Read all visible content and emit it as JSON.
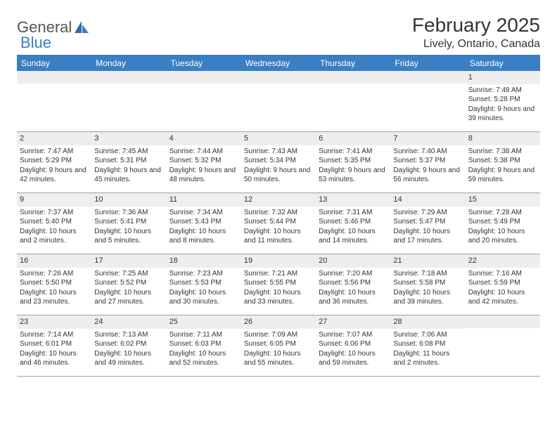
{
  "brand": {
    "part1": "General",
    "part2": "Blue"
  },
  "title": "February 2025",
  "location": "Lively, Ontario, Canada",
  "colors": {
    "header_bg": "#3a7fc4",
    "header_text": "#ffffff",
    "daynum_bg": "#eeeeee",
    "border": "#8aa6c0",
    "page_bg": "#ffffff",
    "text": "#333333"
  },
  "fonts": {
    "title_size": 28,
    "location_size": 16,
    "header_size": 12,
    "cell_size": 10,
    "daynum_size": 11
  },
  "day_labels": [
    "Sunday",
    "Monday",
    "Tuesday",
    "Wednesday",
    "Thursday",
    "Friday",
    "Saturday"
  ],
  "weeks": [
    [
      null,
      null,
      null,
      null,
      null,
      null,
      {
        "d": "1",
        "sunrise": "Sunrise: 7:48 AM",
        "sunset": "Sunset: 5:28 PM",
        "daylight": "Daylight: 9 hours and 39 minutes."
      }
    ],
    [
      {
        "d": "2",
        "sunrise": "Sunrise: 7:47 AM",
        "sunset": "Sunset: 5:29 PM",
        "daylight": "Daylight: 9 hours and 42 minutes."
      },
      {
        "d": "3",
        "sunrise": "Sunrise: 7:45 AM",
        "sunset": "Sunset: 5:31 PM",
        "daylight": "Daylight: 9 hours and 45 minutes."
      },
      {
        "d": "4",
        "sunrise": "Sunrise: 7:44 AM",
        "sunset": "Sunset: 5:32 PM",
        "daylight": "Daylight: 9 hours and 48 minutes."
      },
      {
        "d": "5",
        "sunrise": "Sunrise: 7:43 AM",
        "sunset": "Sunset: 5:34 PM",
        "daylight": "Daylight: 9 hours and 50 minutes."
      },
      {
        "d": "6",
        "sunrise": "Sunrise: 7:41 AM",
        "sunset": "Sunset: 5:35 PM",
        "daylight": "Daylight: 9 hours and 53 minutes."
      },
      {
        "d": "7",
        "sunrise": "Sunrise: 7:40 AM",
        "sunset": "Sunset: 5:37 PM",
        "daylight": "Daylight: 9 hours and 56 minutes."
      },
      {
        "d": "8",
        "sunrise": "Sunrise: 7:38 AM",
        "sunset": "Sunset: 5:38 PM",
        "daylight": "Daylight: 9 hours and 59 minutes."
      }
    ],
    [
      {
        "d": "9",
        "sunrise": "Sunrise: 7:37 AM",
        "sunset": "Sunset: 5:40 PM",
        "daylight": "Daylight: 10 hours and 2 minutes."
      },
      {
        "d": "10",
        "sunrise": "Sunrise: 7:36 AM",
        "sunset": "Sunset: 5:41 PM",
        "daylight": "Daylight: 10 hours and 5 minutes."
      },
      {
        "d": "11",
        "sunrise": "Sunrise: 7:34 AM",
        "sunset": "Sunset: 5:43 PM",
        "daylight": "Daylight: 10 hours and 8 minutes."
      },
      {
        "d": "12",
        "sunrise": "Sunrise: 7:32 AM",
        "sunset": "Sunset: 5:44 PM",
        "daylight": "Daylight: 10 hours and 11 minutes."
      },
      {
        "d": "13",
        "sunrise": "Sunrise: 7:31 AM",
        "sunset": "Sunset: 5:46 PM",
        "daylight": "Daylight: 10 hours and 14 minutes."
      },
      {
        "d": "14",
        "sunrise": "Sunrise: 7:29 AM",
        "sunset": "Sunset: 5:47 PM",
        "daylight": "Daylight: 10 hours and 17 minutes."
      },
      {
        "d": "15",
        "sunrise": "Sunrise: 7:28 AM",
        "sunset": "Sunset: 5:49 PM",
        "daylight": "Daylight: 10 hours and 20 minutes."
      }
    ],
    [
      {
        "d": "16",
        "sunrise": "Sunrise: 7:26 AM",
        "sunset": "Sunset: 5:50 PM",
        "daylight": "Daylight: 10 hours and 23 minutes."
      },
      {
        "d": "17",
        "sunrise": "Sunrise: 7:25 AM",
        "sunset": "Sunset: 5:52 PM",
        "daylight": "Daylight: 10 hours and 27 minutes."
      },
      {
        "d": "18",
        "sunrise": "Sunrise: 7:23 AM",
        "sunset": "Sunset: 5:53 PM",
        "daylight": "Daylight: 10 hours and 30 minutes."
      },
      {
        "d": "19",
        "sunrise": "Sunrise: 7:21 AM",
        "sunset": "Sunset: 5:55 PM",
        "daylight": "Daylight: 10 hours and 33 minutes."
      },
      {
        "d": "20",
        "sunrise": "Sunrise: 7:20 AM",
        "sunset": "Sunset: 5:56 PM",
        "daylight": "Daylight: 10 hours and 36 minutes."
      },
      {
        "d": "21",
        "sunrise": "Sunrise: 7:18 AM",
        "sunset": "Sunset: 5:58 PM",
        "daylight": "Daylight: 10 hours and 39 minutes."
      },
      {
        "d": "22",
        "sunrise": "Sunrise: 7:16 AM",
        "sunset": "Sunset: 5:59 PM",
        "daylight": "Daylight: 10 hours and 42 minutes."
      }
    ],
    [
      {
        "d": "23",
        "sunrise": "Sunrise: 7:14 AM",
        "sunset": "Sunset: 6:01 PM",
        "daylight": "Daylight: 10 hours and 46 minutes."
      },
      {
        "d": "24",
        "sunrise": "Sunrise: 7:13 AM",
        "sunset": "Sunset: 6:02 PM",
        "daylight": "Daylight: 10 hours and 49 minutes."
      },
      {
        "d": "25",
        "sunrise": "Sunrise: 7:11 AM",
        "sunset": "Sunset: 6:03 PM",
        "daylight": "Daylight: 10 hours and 52 minutes."
      },
      {
        "d": "26",
        "sunrise": "Sunrise: 7:09 AM",
        "sunset": "Sunset: 6:05 PM",
        "daylight": "Daylight: 10 hours and 55 minutes."
      },
      {
        "d": "27",
        "sunrise": "Sunrise: 7:07 AM",
        "sunset": "Sunset: 6:06 PM",
        "daylight": "Daylight: 10 hours and 59 minutes."
      },
      {
        "d": "28",
        "sunrise": "Sunrise: 7:06 AM",
        "sunset": "Sunset: 6:08 PM",
        "daylight": "Daylight: 11 hours and 2 minutes."
      },
      null
    ]
  ]
}
